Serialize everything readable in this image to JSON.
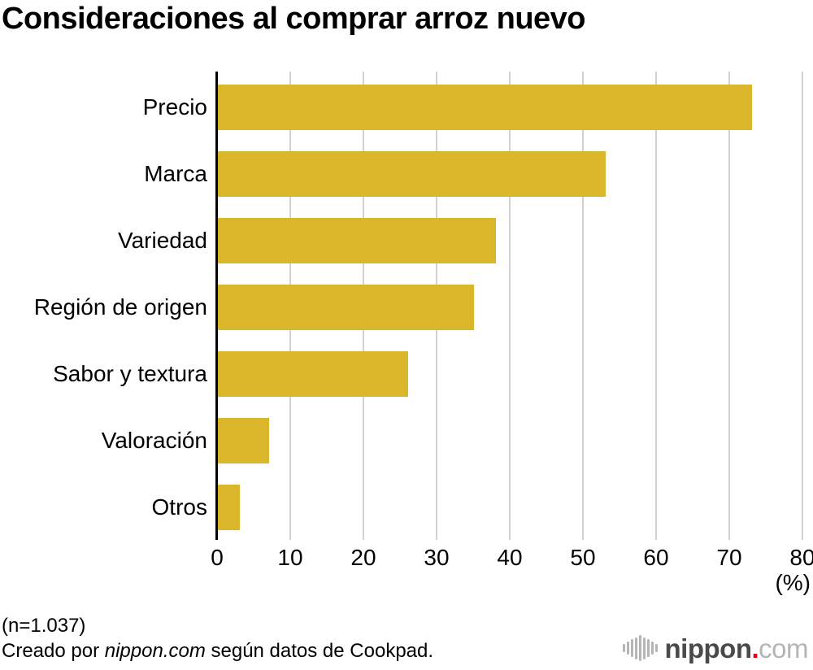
{
  "chart_data": {
    "type": "bar",
    "orientation": "horizontal",
    "title": "Consideraciones al comprar arroz nuevo",
    "categories": [
      "Precio",
      "Marca",
      "Variedad",
      "Región de origen",
      "Sabor y textura",
      "Valoración",
      "Otros"
    ],
    "values": [
      73,
      53,
      38,
      35,
      26,
      7,
      3
    ],
    "xlabel": "",
    "ylabel": "",
    "x_unit_label": "(%)",
    "xlim": [
      0,
      80
    ],
    "xticks": [
      0,
      10,
      20,
      30,
      40,
      50,
      60,
      70,
      80
    ],
    "grid": true,
    "legend": false,
    "bar_color": "#DCB62A",
    "gridline_color": "#D2D2D2",
    "axis_color": "#000000"
  },
  "footer": {
    "sample_size": "(n=1.037)",
    "credit_prefix": "Creado por ",
    "credit_source": "nippon.com",
    "credit_suffix": " según datos de Cookpad."
  },
  "logo": {
    "icon": "soundwave-bars-icon",
    "name": "nippon",
    "dot": ".",
    "tld": "com",
    "name_color": "#4A4A4A",
    "dot_color": "#E60012",
    "tld_color": "#B5B5B5",
    "icon_color": "#B5B5B5"
  }
}
